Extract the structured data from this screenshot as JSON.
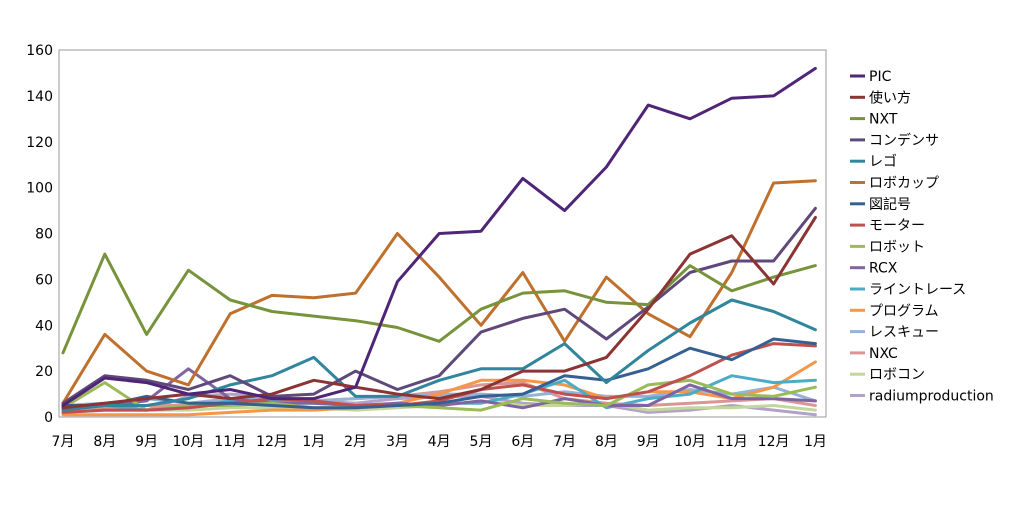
{
  "chart_data": {
    "type": "line",
    "title": "",
    "xlabel": "",
    "ylabel": "",
    "ylim": [
      0,
      160
    ],
    "yticks": [
      0,
      20,
      40,
      60,
      80,
      100,
      120,
      140,
      160
    ],
    "grid": false,
    "legend_position": "right",
    "categories": [
      "7月",
      "8月",
      "9月",
      "10月",
      "11月",
      "12月",
      "1月",
      "2月",
      "3月",
      "4月",
      "5月",
      "6月",
      "7月",
      "8月",
      "9月",
      "10月",
      "11月",
      "12月",
      "1月"
    ],
    "series": [
      {
        "name": "PIC",
        "color": "#4f2677",
        "values": [
          5,
          17,
          15,
          10,
          12,
          8,
          8,
          13,
          59,
          80,
          81,
          104,
          90,
          109,
          136,
          130,
          139,
          140,
          152
        ]
      },
      {
        "name": "使い方",
        "color": "#8c3333",
        "values": [
          4,
          6,
          8,
          10,
          8,
          10,
          16,
          13,
          10,
          8,
          12,
          20,
          20,
          26,
          47,
          71,
          79,
          58,
          87
        ]
      },
      {
        "name": "NXT",
        "color": "#77933c",
        "values": [
          28,
          71,
          36,
          64,
          51,
          46,
          44,
          42,
          39,
          33,
          47,
          54,
          55,
          50,
          49,
          66,
          55,
          61,
          66
        ]
      },
      {
        "name": "コンデンサ",
        "color": "#5f497a",
        "values": [
          6,
          18,
          16,
          12,
          18,
          9,
          10,
          20,
          12,
          18,
          37,
          43,
          47,
          34,
          48,
          63,
          68,
          68,
          91
        ]
      },
      {
        "name": "レゴ",
        "color": "#31859c",
        "values": [
          3,
          5,
          5,
          8,
          14,
          18,
          26,
          9,
          9,
          16,
          21,
          21,
          32,
          15,
          29,
          41,
          51,
          46,
          38
        ]
      },
      {
        "name": "ロボカップ",
        "color": "#c0702d",
        "values": [
          6,
          36,
          20,
          14,
          45,
          53,
          52,
          54,
          80,
          61,
          40,
          63,
          33,
          61,
          45,
          35,
          63,
          102,
          103
        ]
      },
      {
        "name": "図記号",
        "color": "#376092",
        "values": [
          5,
          5,
          9,
          6,
          6,
          5,
          4,
          4,
          5,
          6,
          9,
          10,
          18,
          16,
          21,
          30,
          25,
          34,
          32
        ]
      },
      {
        "name": "モーター",
        "color": "#c0504d",
        "values": [
          2,
          3,
          3,
          4,
          6,
          8,
          7,
          5,
          5,
          7,
          12,
          14,
          10,
          8,
          11,
          18,
          27,
          32,
          31
        ]
      },
      {
        "name": "ロボット",
        "color": "#9bbb59",
        "values": [
          4,
          15,
          3,
          5,
          5,
          6,
          4,
          4,
          5,
          4,
          3,
          8,
          6,
          5,
          14,
          16,
          10,
          9,
          13
        ]
      },
      {
        "name": "RCX",
        "color": "#8064a2",
        "values": [
          5,
          5,
          7,
          21,
          8,
          6,
          6,
          5,
          6,
          5,
          7,
          4,
          8,
          5,
          5,
          14,
          8,
          8,
          7
        ]
      },
      {
        "name": "ライントレース",
        "color": "#4bacc6",
        "values": [
          3,
          5,
          3,
          4,
          7,
          7,
          6,
          5,
          5,
          6,
          6,
          10,
          16,
          4,
          8,
          10,
          18,
          15,
          16
        ]
      },
      {
        "name": "プログラム",
        "color": "#f79646",
        "values": [
          1,
          1,
          1,
          1,
          2,
          3,
          3,
          4,
          6,
          10,
          16,
          16,
          14,
          8,
          11,
          11,
          8,
          13,
          24
        ]
      },
      {
        "name": "レスキュー",
        "color": "#95b3d7",
        "values": [
          5,
          6,
          8,
          6,
          8,
          8,
          7,
          8,
          9,
          10,
          10,
          9,
          11,
          9,
          9,
          12,
          10,
          13,
          7
        ]
      },
      {
        "name": "NXC",
        "color": "#d99694",
        "values": [
          4,
          4,
          5,
          5,
          6,
          6,
          7,
          8,
          9,
          11,
          14,
          15,
          8,
          6,
          5,
          6,
          7,
          8,
          5
        ]
      },
      {
        "name": "ロボコン",
        "color": "#c3d69b",
        "values": [
          2,
          4,
          3,
          3,
          4,
          4,
          4,
          3,
          4,
          5,
          7,
          5,
          5,
          6,
          3,
          4,
          4,
          5,
          3
        ]
      },
      {
        "name": "radiumproduction",
        "color": "#b2a2c7",
        "values": [
          2,
          3,
          3,
          9,
          10,
          9,
          7,
          6,
          8,
          9,
          9,
          6,
          5,
          5,
          2,
          3,
          5,
          3,
          1
        ]
      }
    ]
  }
}
